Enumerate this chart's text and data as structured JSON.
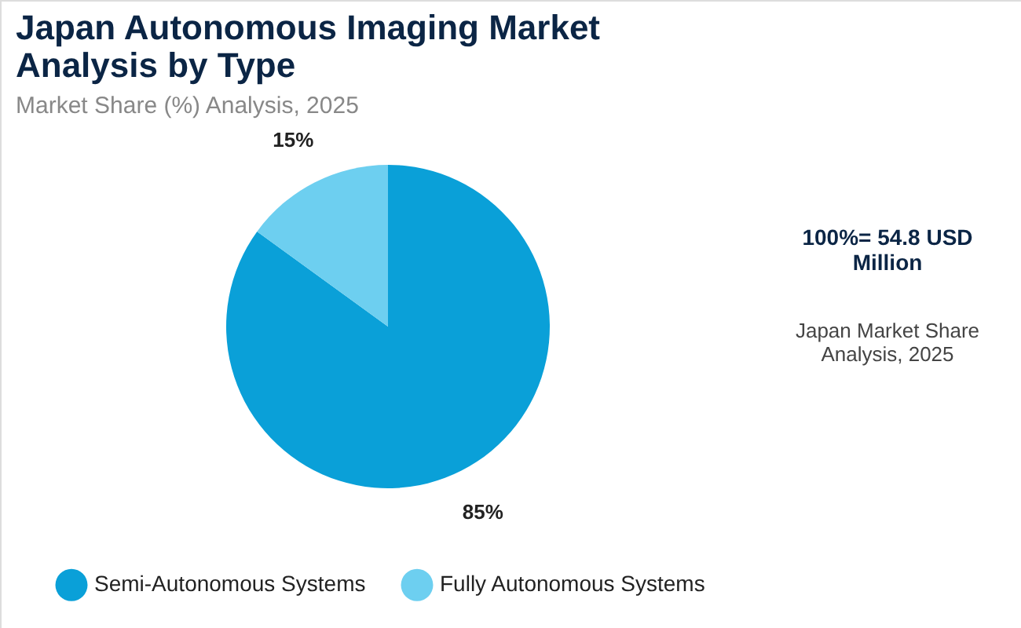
{
  "chart_data": {
    "type": "pie",
    "title": "Japan Autonomous Imaging Market Analysis by Type",
    "subtitle": "Market Share (%) Analysis, 2025",
    "categories": [
      "Semi-Autonomous Systems",
      "Fully Autonomous Systems"
    ],
    "values": [
      85,
      15
    ],
    "colors": [
      "#0aa0d8",
      "#6dcff0"
    ],
    "value_labels": [
      "85%",
      "15%"
    ],
    "legend": "bottom",
    "annotations": [
      "100%= 54.8 USD Million",
      "Japan Market Share Analysis, 2025"
    ]
  }
}
